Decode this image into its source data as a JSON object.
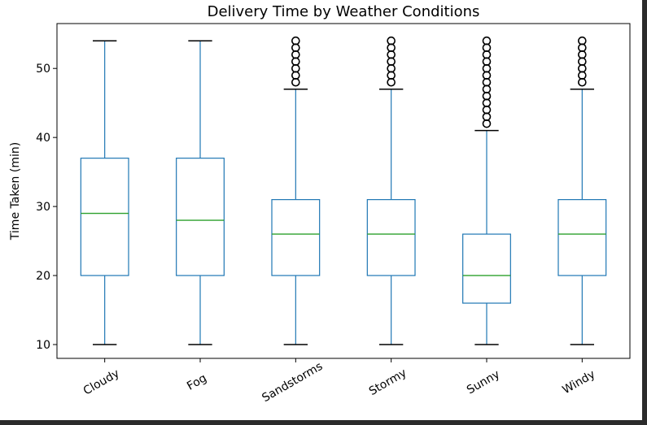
{
  "chart_data": {
    "type": "box",
    "title": "Delivery Time by Weather Conditions",
    "xlabel": "",
    "ylabel": "Time Taken (min)",
    "ylim": [
      8,
      56.5
    ],
    "yticks": [
      10,
      20,
      30,
      40,
      50
    ],
    "categories": [
      "Cloudy",
      "Fog",
      "Sandstorms",
      "Stormy",
      "Sunny",
      "Windy"
    ],
    "boxes": [
      {
        "whislo": 10,
        "q1": 20,
        "med": 29,
        "q3": 37,
        "whishi": 54,
        "fliers": []
      },
      {
        "whislo": 10,
        "q1": 20,
        "med": 28,
        "q3": 37,
        "whishi": 54,
        "fliers": []
      },
      {
        "whislo": 10,
        "q1": 20,
        "med": 26,
        "q3": 31,
        "whishi": 47,
        "fliers": [
          48,
          49,
          50,
          51,
          52,
          53,
          54
        ]
      },
      {
        "whislo": 10,
        "q1": 20,
        "med": 26,
        "q3": 31,
        "whishi": 47,
        "fliers": [
          48,
          49,
          50,
          51,
          52,
          53,
          54
        ]
      },
      {
        "whislo": 10,
        "q1": 16,
        "med": 20,
        "q3": 26,
        "whishi": 41,
        "fliers": [
          42,
          43,
          44,
          45,
          46,
          47,
          48,
          49,
          50,
          51,
          52,
          53,
          54
        ]
      },
      {
        "whislo": 10,
        "q1": 20,
        "med": 26,
        "q3": 31,
        "whishi": 47,
        "fliers": [
          48,
          49,
          50,
          51,
          52,
          53,
          54
        ]
      }
    ],
    "grid": false,
    "colors": {
      "box": "#1f77b4",
      "median": "#2ca02c",
      "flier": "#000000"
    }
  }
}
